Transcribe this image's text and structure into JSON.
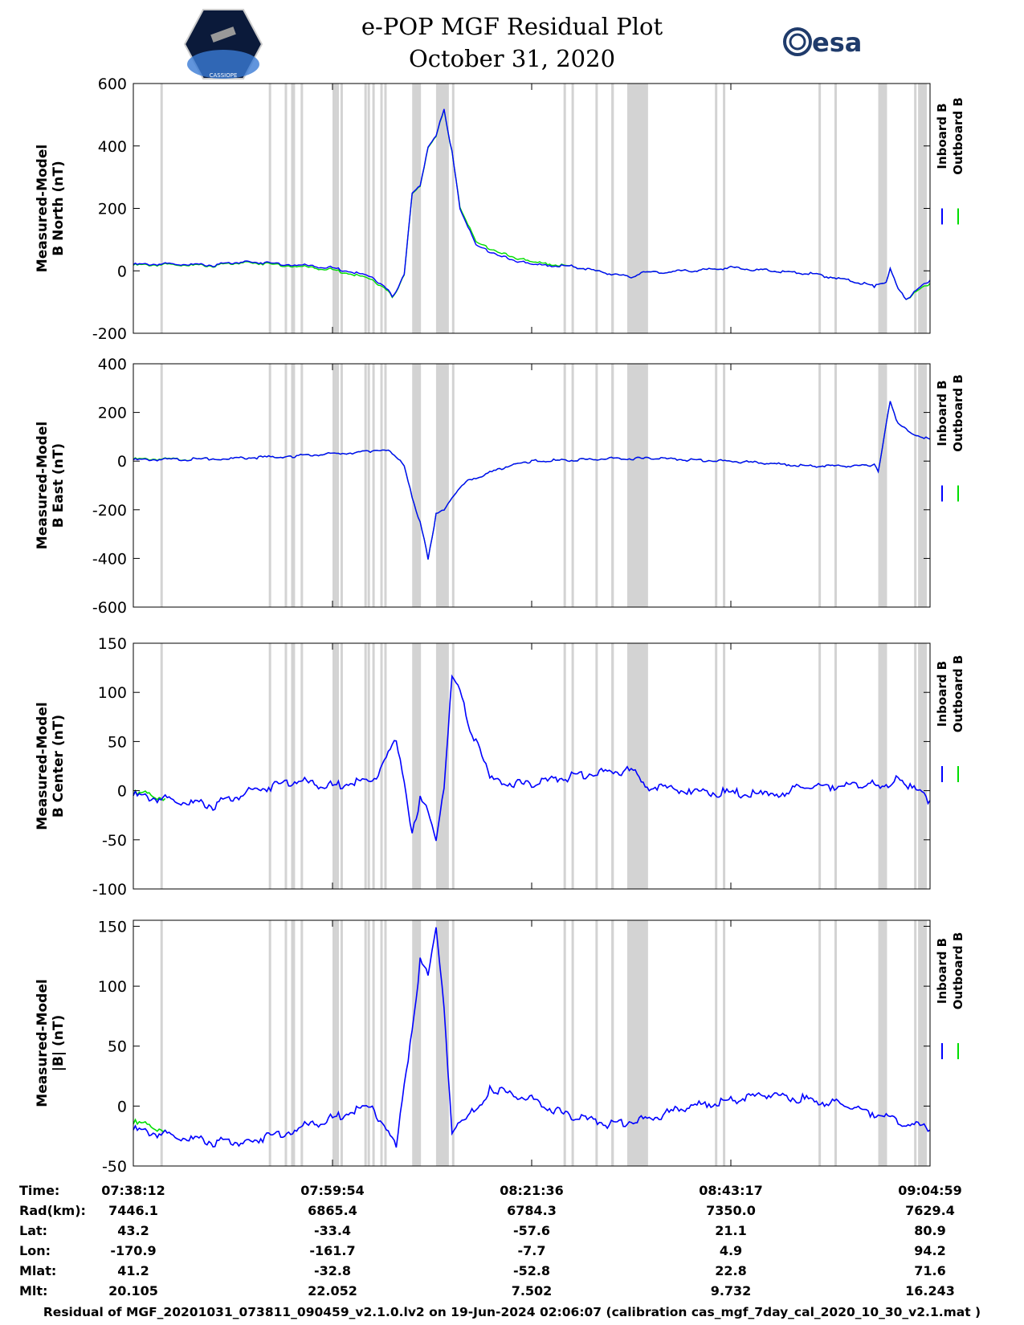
{
  "header": {
    "title_line1": "e-POP MGF Residual Plot",
    "title_line2": "October 31, 2020",
    "logo_left_text": "CASSIOPE",
    "logo_right_text": "esa"
  },
  "colors": {
    "inboard": "#0000ff",
    "outboard": "#00dd00",
    "gap": "#d3d3d3"
  },
  "chart_data": [
    {
      "type": "line",
      "id": "bnorth",
      "ylabel_line1": "Measured-Model",
      "ylabel_line2": "B North (nT)",
      "ylim": [
        -200,
        600
      ],
      "yticks": [
        "600",
        "400",
        "200",
        "0",
        "-200"
      ],
      "ytick_values": [
        600,
        400,
        200,
        0,
        -200
      ],
      "legend": [
        "Inboard B",
        "Outboard B"
      ],
      "series": [
        {
          "name": "Inboard B",
          "x": [
            0,
            0.05,
            0.1,
            0.14,
            0.2,
            0.25,
            0.3,
            0.315,
            0.325,
            0.33,
            0.34,
            0.35,
            0.36,
            0.37,
            0.38,
            0.39,
            0.4,
            0.41,
            0.43,
            0.47,
            0.5,
            0.55,
            0.6,
            0.63,
            0.64,
            0.65,
            0.7,
            0.75,
            0.8,
            0.85,
            0.9,
            0.93,
            0.945,
            0.95,
            0.96,
            0.97,
            1.0
          ],
          "y": [
            20,
            22,
            18,
            30,
            20,
            10,
            -20,
            -50,
            -80,
            -70,
            -10,
            250,
            270,
            400,
            430,
            520,
            380,
            200,
            80,
            40,
            20,
            15,
            -10,
            -20,
            0,
            -5,
            0,
            10,
            0,
            -10,
            -30,
            -50,
            -40,
            10,
            -60,
            -90,
            -30
          ]
        },
        {
          "name": "Outboard B",
          "x": [
            0,
            0.05,
            0.1,
            0.14,
            0.2,
            0.25,
            0.3,
            0.315,
            0.325,
            0.33,
            0.34,
            0.35,
            0.36,
            0.37,
            0.38,
            0.39,
            0.4,
            0.41,
            0.43,
            0.47,
            0.5,
            0.55,
            0.6,
            0.63,
            0.64,
            0.65,
            0.7,
            0.75,
            0.8,
            0.85,
            0.9,
            0.93,
            0.945,
            0.95,
            0.96,
            0.97,
            1.0
          ],
          "y": [
            18,
            20,
            16,
            28,
            16,
            4,
            -28,
            -55,
            -82,
            -72,
            -12,
            248,
            268,
            398,
            428,
            518,
            378,
            205,
            90,
            50,
            28,
            15,
            -10,
            -20,
            0,
            -5,
            0,
            10,
            0,
            -10,
            -30,
            -50,
            -40,
            10,
            -60,
            -90,
            -40
          ]
        }
      ]
    },
    {
      "type": "line",
      "id": "beast",
      "ylabel_line1": "Measured-Model",
      "ylabel_line2": "B East (nT)",
      "ylim": [
        -600,
        400
      ],
      "yticks": [
        "400",
        "200",
        "0",
        "-200",
        "-400",
        "-600"
      ],
      "ytick_values": [
        400,
        200,
        0,
        -200,
        -400,
        -600
      ],
      "legend": [
        "Inboard B",
        "Outboard B"
      ],
      "series": [
        {
          "name": "Inboard B",
          "x": [
            0,
            0.1,
            0.2,
            0.3,
            0.32,
            0.34,
            0.35,
            0.36,
            0.37,
            0.38,
            0.39,
            0.4,
            0.42,
            0.47,
            0.5,
            0.55,
            0.6,
            0.65,
            0.7,
            0.75,
            0.8,
            0.85,
            0.9,
            0.93,
            0.935,
            0.94,
            0.95,
            0.96,
            0.98,
            1.0
          ],
          "y": [
            5,
            8,
            20,
            40,
            50,
            -20,
            -150,
            -250,
            -400,
            -220,
            -200,
            -150,
            -80,
            -20,
            0,
            5,
            10,
            10,
            5,
            0,
            -10,
            -20,
            -20,
            -15,
            -40,
            50,
            250,
            150,
            110,
            90
          ]
        },
        {
          "name": "Outboard B",
          "x": [
            0,
            0.1,
            0.2,
            0.3,
            0.32,
            0.34,
            0.35,
            0.36,
            0.37,
            0.38,
            0.39,
            0.4,
            0.42,
            0.47,
            0.5,
            0.55,
            0.6,
            0.65,
            0.7,
            0.75,
            0.8,
            0.85,
            0.9,
            0.93,
            0.935,
            0.94,
            0.95,
            0.96,
            0.98,
            1.0
          ],
          "y": [
            8,
            8,
            20,
            40,
            50,
            -20,
            -150,
            -250,
            -400,
            -220,
            -200,
            -150,
            -80,
            -20,
            0,
            5,
            10,
            10,
            5,
            0,
            -10,
            -20,
            -20,
            -15,
            -40,
            50,
            250,
            150,
            110,
            90
          ]
        }
      ]
    },
    {
      "type": "line",
      "id": "bcenter",
      "ylabel_line1": "Measured-Model",
      "ylabel_line2": "B Center (nT)",
      "ylim": [
        -100,
        150
      ],
      "yticks": [
        "150",
        "100",
        "50",
        "0",
        "-50",
        "-100"
      ],
      "ytick_values": [
        150,
        100,
        50,
        0,
        -50,
        -100
      ],
      "legend": [
        "Inboard B",
        "Outboard B"
      ],
      "series": [
        {
          "name": "Inboard B",
          "x": [
            0,
            0.05,
            0.1,
            0.15,
            0.2,
            0.25,
            0.3,
            0.33,
            0.35,
            0.36,
            0.37,
            0.38,
            0.39,
            0.4,
            0.41,
            0.42,
            0.45,
            0.5,
            0.55,
            0.6,
            0.63,
            0.64,
            0.7,
            0.8,
            0.85,
            0.9,
            0.93,
            0.95,
            0.96,
            0.98,
            1.0
          ],
          "y": [
            -5,
            -10,
            -15,
            0,
            10,
            5,
            10,
            50,
            -40,
            -10,
            -20,
            -50,
            0,
            120,
            100,
            70,
            10,
            5,
            15,
            20,
            20,
            5,
            0,
            -5,
            5,
            5,
            10,
            0,
            15,
            0,
            -10
          ]
        },
        {
          "name": "Outboard B",
          "x": [
            0,
            0.02,
            0.04
          ],
          "y": [
            -5,
            -3,
            -8
          ]
        }
      ]
    },
    {
      "type": "line",
      "id": "bmag",
      "ylabel_line1": "Measured-Model",
      "ylabel_line2": "|B| (nT)",
      "ylim": [
        -50,
        155
      ],
      "yticks": [
        "150",
        "100",
        "50",
        "0",
        "-50"
      ],
      "ytick_values": [
        150,
        100,
        50,
        0,
        -50
      ],
      "legend": [
        "Inboard B",
        "Outboard B"
      ],
      "series": [
        {
          "name": "Inboard B",
          "x": [
            0,
            0.05,
            0.1,
            0.14,
            0.2,
            0.25,
            0.3,
            0.33,
            0.345,
            0.36,
            0.37,
            0.38,
            0.39,
            0.4,
            0.42,
            0.45,
            0.5,
            0.55,
            0.6,
            0.65,
            0.7,
            0.75,
            0.8,
            0.85,
            0.9,
            0.95,
            1.0
          ],
          "y": [
            -20,
            -25,
            -30,
            -30,
            -20,
            -10,
            0,
            -35,
            40,
            120,
            110,
            150,
            80,
            -20,
            -10,
            15,
            5,
            -10,
            -15,
            -10,
            0,
            5,
            10,
            5,
            0,
            -10,
            -20
          ]
        },
        {
          "name": "Outboard B",
          "x": [
            0,
            0.02,
            0.04
          ],
          "y": [
            -15,
            -16,
            -20
          ]
        }
      ]
    }
  ],
  "gaps": [
    0.034,
    0.17,
    0.19,
    0.198,
    0.2,
    0.21,
    0.25,
    0.252,
    0.255,
    0.26,
    0.29,
    0.294,
    0.3,
    0.31,
    0.315,
    0.38,
    0.39,
    0.4,
    0.54,
    0.55,
    0.58,
    0.6,
    0.6,
    0.62,
    0.73,
    0.74,
    0.86,
    0.88,
    0.935,
    0.98
  ],
  "gap_bands": [
    [
      0.35,
      0.355
    ],
    [
      0.38,
      0.39
    ],
    [
      0.62,
      0.64
    ],
    [
      0.935,
      0.94
    ],
    [
      0.985,
      0.99
    ]
  ],
  "info": {
    "labels": [
      "Time:",
      "Rad(km):",
      "Lat:",
      "Lon:",
      "Mlat:",
      "Mlt:"
    ],
    "columns": [
      [
        "07:38:12",
        "7446.1",
        "43.2",
        "-170.9",
        "41.2",
        "20.105"
      ],
      [
        "07:59:54",
        "6865.4",
        "-33.4",
        "-161.7",
        "-32.8",
        "22.052"
      ],
      [
        "08:21:36",
        "6784.3",
        "-57.6",
        "-7.7",
        "-52.8",
        "7.502"
      ],
      [
        "08:43:17",
        "7350.0",
        "21.1",
        "4.9",
        "22.8",
        "9.732"
      ],
      [
        "09:04:59",
        "7629.4",
        "80.9",
        "94.2",
        "71.6",
        "16.243"
      ]
    ]
  },
  "footer": "Residual of MGF_20201031_073811_090459_v2.1.0.lv2 on 19-Jun-2024 02:06:07 (calibration cas_mgf_7day_cal_2020_10_30_v2.1.mat )"
}
